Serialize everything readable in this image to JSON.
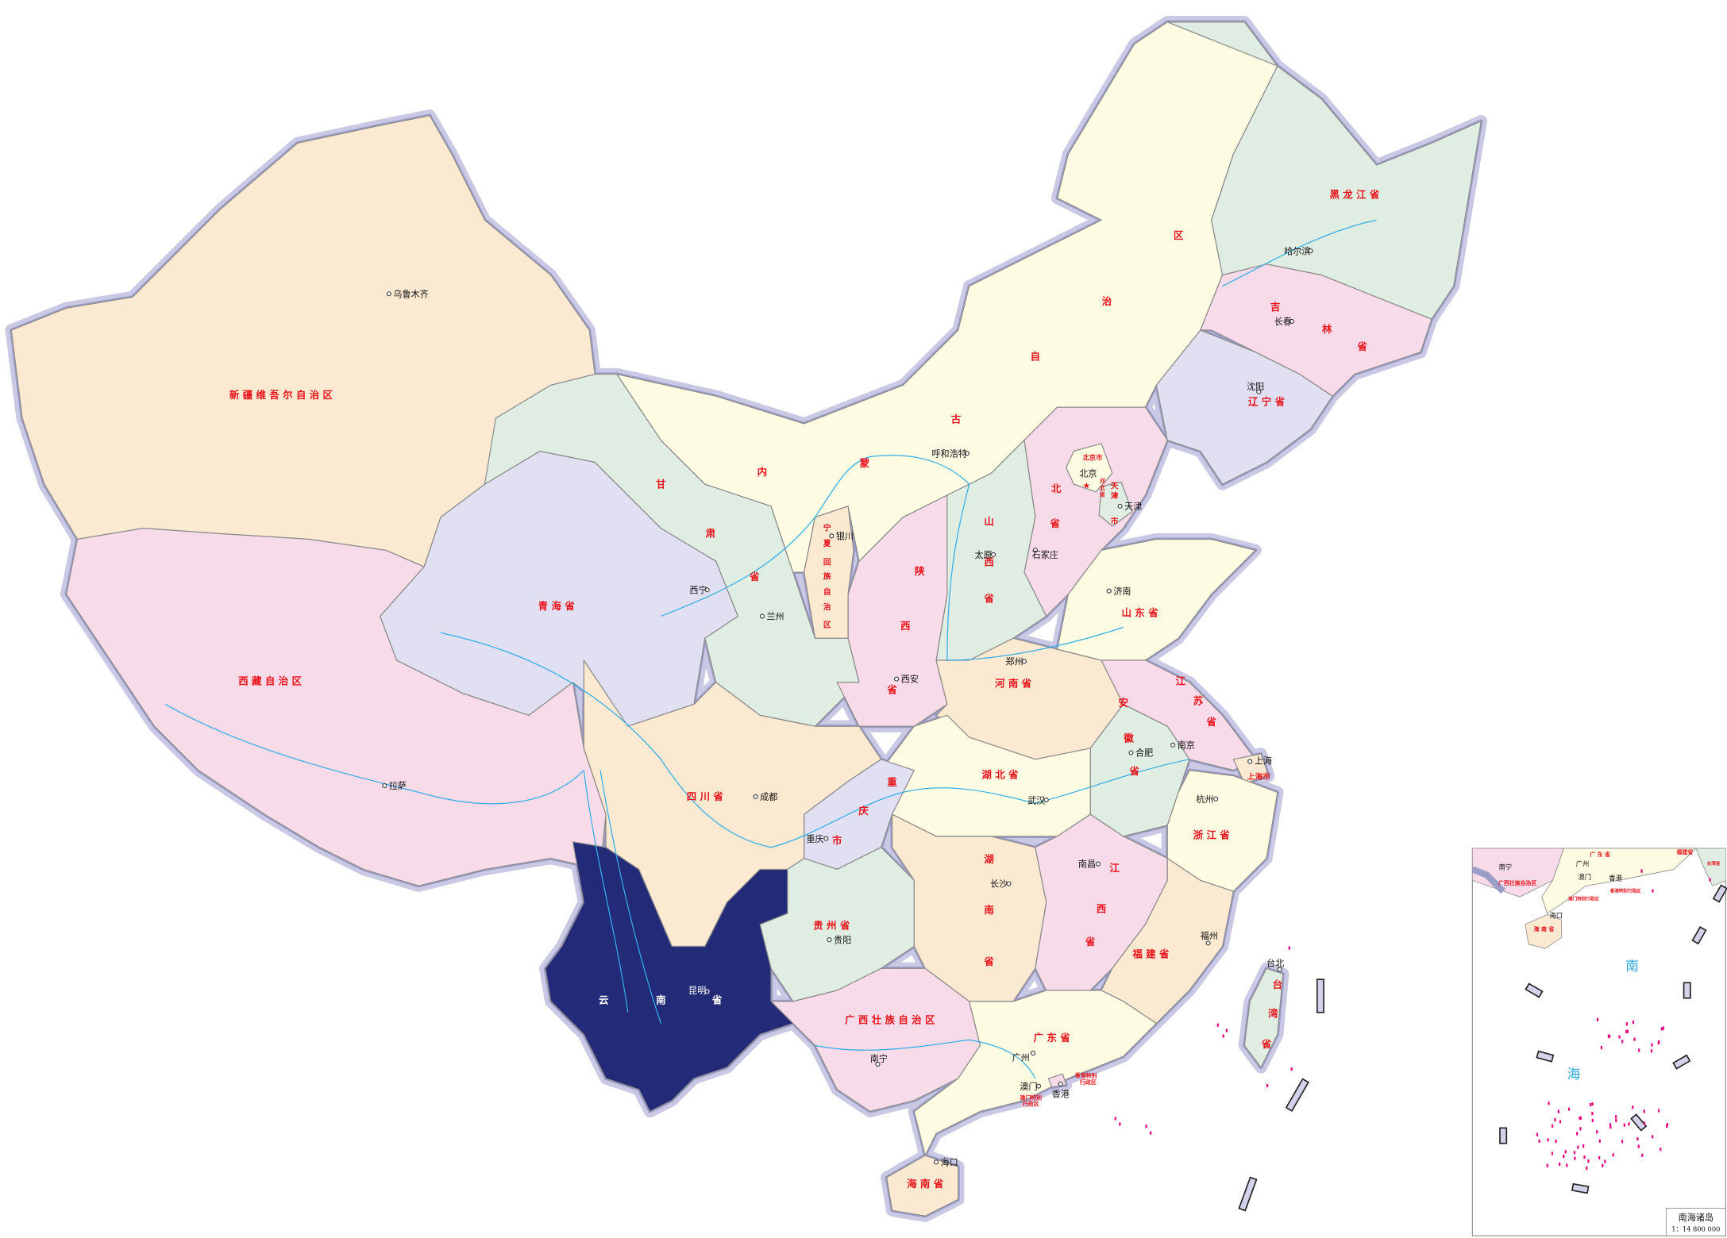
{
  "colors": {
    "peach": "#fbe9d2",
    "pink": "#f8dbe8",
    "lavender": "#e0e0f2",
    "green": "#e0ede2",
    "yellow": "#fefbe3",
    "highlight": "#232a78",
    "label_red": "#e8141c",
    "river": "#33aee8",
    "border_halo": "#c9c9e6"
  },
  "highlighted_province": "云南省",
  "provinces": {
    "xinjiang": "新 疆 维 吾 尔 自 治 区",
    "tibet": "西 藏 自 治 区",
    "qinghai": "青 海 省",
    "gansu": [
      "甘",
      "肃",
      "省"
    ],
    "inner_mongolia": [
      "内",
      "蒙",
      "古",
      "自",
      "治",
      "区"
    ],
    "heilongjiang": "黑 龙 江 省",
    "jilin": [
      "吉",
      "林",
      "省"
    ],
    "liaoning": "辽 宁 省",
    "beijing": "北京市",
    "hebei": [
      "北",
      "省"
    ],
    "hebei_enclave": [
      "河",
      "北",
      "省"
    ],
    "tianjin": [
      "天",
      "津",
      "市"
    ],
    "shanxi": [
      "山",
      "西",
      "省"
    ],
    "shaanxi": [
      "陕",
      "西",
      "省"
    ],
    "ningxia": [
      "宁",
      "夏",
      "回",
      "族",
      "自",
      "治",
      "区"
    ],
    "shandong": "山 东 省",
    "henan": "河 南 省",
    "jiangsu": [
      "江",
      "苏",
      "省"
    ],
    "anhui": [
      "安",
      "徽",
      "省"
    ],
    "shanghai": "上海市",
    "hubei": "湖 北 省",
    "zhejiang": "浙 江 省",
    "sichuan": "四 川 省",
    "chongqing": [
      "重",
      "庆",
      "市"
    ],
    "guizhou": "贵 州 省",
    "hunan": [
      "湖",
      "南",
      "省"
    ],
    "jiangxi": [
      "江",
      "西",
      "省"
    ],
    "fujian": "福 建 省",
    "yunnan": [
      "云",
      "南",
      "省"
    ],
    "guangxi": "广 西 壮 族 自 治 区",
    "guangdong": "广 东 省",
    "hainan": "海 南 省",
    "taiwan": [
      "台",
      "湾",
      "省"
    ],
    "hongkong": [
      "香港特别",
      "行政区"
    ],
    "macau": [
      "澳门特别",
      "行政区"
    ]
  },
  "cities": {
    "urumqi": "乌鲁木齐",
    "lhasa": "拉萨",
    "xining": "西宁",
    "lanzhou": "兰州",
    "yinchuan": "银川",
    "hohhot": "呼和浩特",
    "taiyuan": "太原",
    "shijiazhuang": "石家庄",
    "beijing": "北京",
    "tianjin": "天津",
    "shenyang": "沈阳",
    "changchun": "长春",
    "harbin": "哈尔滨",
    "jinan": "济南",
    "zhengzhou": "郑州",
    "xian": "西安",
    "nanjing": "南京",
    "hefei": "合肥",
    "shanghai": "上海",
    "hangzhou": "杭州",
    "wuhan": "武汉",
    "chengdu": "成都",
    "chongqing": "重庆",
    "guiyang": "贵阳",
    "kunming": "昆明",
    "changsha": "长沙",
    "nanchang": "南昌",
    "fuzhou": "福州",
    "taipei": "台北",
    "guangzhou": "广州",
    "nanning": "南宁",
    "macau": "澳门",
    "hongkong": "香港",
    "haikou": "海口"
  },
  "inset": {
    "title": "南海诸岛",
    "scale": "1：14 800 000",
    "sea_label": [
      "南",
      "海"
    ],
    "labels": {
      "guangdong": "广 东 省",
      "guangxi": "广西壮族自治区",
      "hainan": "海 南 省",
      "fujian": "福建省",
      "taiwan": "台湾省",
      "nanning": "南宁",
      "guangzhou": "广州",
      "macau": "澳门",
      "hongkong": "香港",
      "haikou": "海口",
      "macau_sar": "澳门特别行政区",
      "hongkong_sar": "香港特别行政区"
    }
  }
}
